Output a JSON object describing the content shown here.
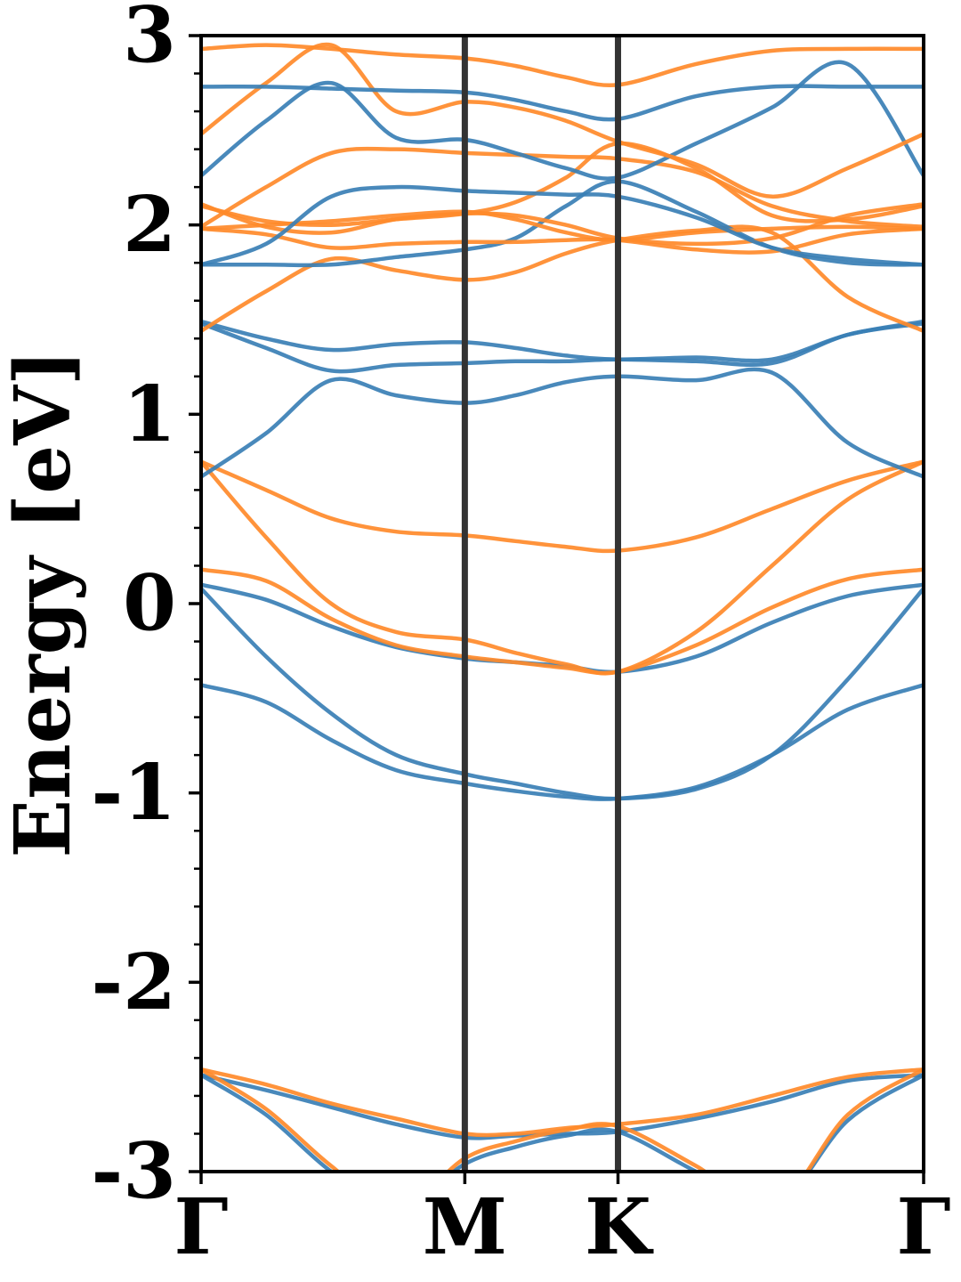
{
  "chart_data": {
    "type": "line",
    "title": "",
    "xlabel": "",
    "ylabel": "Energy [eV]",
    "ylim": [
      -3,
      3
    ],
    "yticks": [
      "-3",
      "-2",
      "-1",
      "0",
      "1",
      "2",
      "3"
    ],
    "kpath_labels": [
      "Γ",
      "M",
      "K",
      "Γ"
    ],
    "kpath_positions": [
      0,
      0.365,
      0.577,
      1
    ],
    "grid": false,
    "legend": "none",
    "colors": {
      "blue": "#3a7fb5",
      "orange": "#ff8a2a",
      "divider": "#333333"
    },
    "x": [
      0,
      0.09,
      0.18,
      0.27,
      0.365,
      0.435,
      0.505,
      0.577,
      0.685,
      0.79,
      0.895,
      1
    ],
    "series": [
      {
        "color": "blue",
        "values": [
          -0.43,
          -0.52,
          -0.72,
          -0.88,
          -0.95,
          -0.99,
          -1.02,
          -1.03,
          -0.97,
          -0.8,
          -0.56,
          -0.43
        ]
      },
      {
        "color": "blue",
        "values": [
          0.08,
          -0.28,
          -0.58,
          -0.8,
          -0.9,
          -0.95,
          -1.0,
          -1.03,
          -0.98,
          -0.8,
          -0.4,
          0.08
        ]
      },
      {
        "color": "blue",
        "values": [
          0.1,
          0.02,
          -0.12,
          -0.23,
          -0.29,
          -0.31,
          -0.33,
          -0.36,
          -0.28,
          -0.1,
          0.04,
          0.1
        ]
      },
      {
        "color": "orange",
        "values": [
          0.75,
          0.35,
          0.0,
          -0.15,
          -0.19,
          -0.26,
          -0.32,
          -0.36,
          -0.15,
          0.2,
          0.55,
          0.75
        ]
      },
      {
        "color": "orange",
        "values": [
          0.18,
          0.12,
          -0.08,
          -0.22,
          -0.28,
          -0.31,
          -0.34,
          -0.36,
          -0.22,
          -0.02,
          0.13,
          0.18
        ]
      },
      {
        "color": "orange",
        "values": [
          0.75,
          0.6,
          0.45,
          0.38,
          0.36,
          0.33,
          0.3,
          0.28,
          0.35,
          0.5,
          0.65,
          0.75
        ]
      },
      {
        "color": "blue",
        "values": [
          0.67,
          0.9,
          1.18,
          1.1,
          1.06,
          1.1,
          1.17,
          1.2,
          1.18,
          1.22,
          0.85,
          0.67
        ]
      },
      {
        "color": "blue",
        "values": [
          1.48,
          1.35,
          1.23,
          1.26,
          1.27,
          1.28,
          1.28,
          1.29,
          1.28,
          1.27,
          1.42,
          1.48
        ]
      },
      {
        "color": "blue",
        "values": [
          1.49,
          1.4,
          1.34,
          1.37,
          1.38,
          1.35,
          1.31,
          1.29,
          1.3,
          1.29,
          1.42,
          1.49
        ]
      },
      {
        "color": "orange",
        "values": [
          1.44,
          1.65,
          1.82,
          1.76,
          1.71,
          1.75,
          1.85,
          1.92,
          1.97,
          1.96,
          1.62,
          1.44
        ]
      },
      {
        "color": "blue",
        "values": [
          1.79,
          1.79,
          1.79,
          1.83,
          1.87,
          1.93,
          2.1,
          2.23,
          2.07,
          1.88,
          1.8,
          1.79
        ]
      },
      {
        "color": "orange",
        "values": [
          1.98,
          1.95,
          1.88,
          1.9,
          1.91,
          1.91,
          1.92,
          1.92,
          1.87,
          1.86,
          1.95,
          1.98
        ]
      },
      {
        "color": "orange",
        "values": [
          2.1,
          2.02,
          2.0,
          2.03,
          2.06,
          2.12,
          2.25,
          2.43,
          2.3,
          2.05,
          2.03,
          2.1
        ]
      },
      {
        "color": "orange",
        "values": [
          1.98,
          2.0,
          2.02,
          2.05,
          2.07,
          2.03,
          1.96,
          1.92,
          1.96,
          1.98,
          1.99,
          1.98
        ]
      },
      {
        "color": "orange",
        "values": [
          2.11,
          1.99,
          1.96,
          2.03,
          2.06,
          2.05,
          2.0,
          1.93,
          1.9,
          1.93,
          2.05,
          2.11
        ]
      },
      {
        "color": "blue",
        "values": [
          1.79,
          1.9,
          2.15,
          2.2,
          2.18,
          2.17,
          2.16,
          2.15,
          2.04,
          1.88,
          1.82,
          1.79
        ]
      },
      {
        "color": "orange",
        "values": [
          1.99,
          2.2,
          2.38,
          2.4,
          2.38,
          2.37,
          2.36,
          2.35,
          2.28,
          2.1,
          2.02,
          1.99
        ]
      },
      {
        "color": "blue",
        "values": [
          2.26,
          2.55,
          2.75,
          2.46,
          2.45,
          2.38,
          2.3,
          2.25,
          2.43,
          2.62,
          2.85,
          2.26
        ]
      },
      {
        "color": "orange",
        "values": [
          2.48,
          2.75,
          2.95,
          2.6,
          2.65,
          2.62,
          2.55,
          2.44,
          2.32,
          2.15,
          2.3,
          2.48
        ]
      },
      {
        "color": "blue",
        "values": [
          2.73,
          2.73,
          2.72,
          2.71,
          2.7,
          2.66,
          2.6,
          2.56,
          2.68,
          2.73,
          2.73,
          2.73
        ]
      },
      {
        "color": "orange",
        "values": [
          2.93,
          2.95,
          2.93,
          2.9,
          2.88,
          2.84,
          2.78,
          2.74,
          2.85,
          2.92,
          2.93,
          2.93
        ]
      },
      {
        "color": "blue",
        "values": [
          -2.49,
          -2.57,
          -2.66,
          -2.75,
          -2.82,
          -2.81,
          -2.8,
          -2.79,
          -2.72,
          -2.63,
          -2.52,
          -2.49
        ]
      },
      {
        "color": "orange",
        "values": [
          -2.46,
          -2.54,
          -2.64,
          -2.72,
          -2.8,
          -2.8,
          -2.77,
          -2.75,
          -2.7,
          -2.6,
          -2.5,
          -2.46
        ]
      },
      {
        "color": "blue",
        "values": [
          -2.49,
          -2.7,
          -3.0,
          -3.2,
          -2.96,
          -2.87,
          -2.81,
          -2.79,
          -3.0,
          -3.2,
          -2.73,
          -2.49
        ]
      },
      {
        "color": "orange",
        "values": [
          -2.46,
          -2.67,
          -2.97,
          -3.2,
          -2.93,
          -2.84,
          -2.78,
          -2.76,
          -2.97,
          -3.2,
          -2.7,
          -2.46
        ]
      }
    ]
  }
}
